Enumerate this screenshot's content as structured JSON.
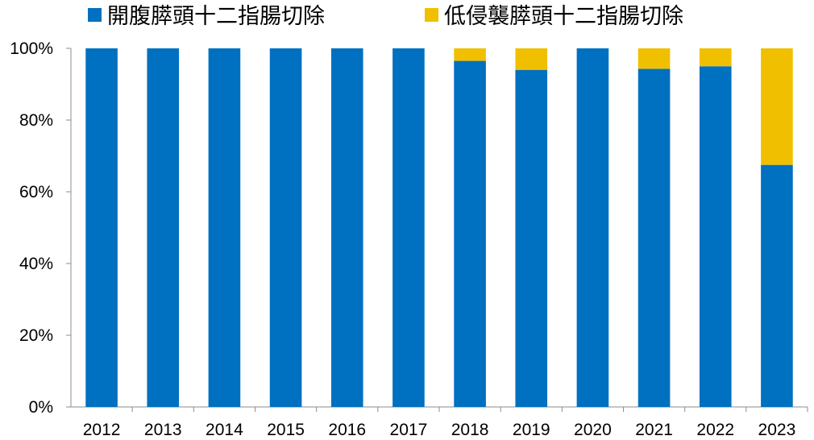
{
  "chart_data": {
    "type": "bar",
    "stacked": true,
    "title": "",
    "xlabel": "",
    "ylabel": "",
    "categories": [
      "2012",
      "2013",
      "2014",
      "2015",
      "2016",
      "2017",
      "2018",
      "2019",
      "2020",
      "2021",
      "2022",
      "2023"
    ],
    "series": [
      {
        "name": "開腹膵頭十二指腸切除",
        "color": "#0070C0",
        "values": [
          100,
          100,
          100,
          100,
          100,
          100,
          96.5,
          94,
          100,
          94.3,
          95,
          67.5
        ]
      },
      {
        "name": "低侵襲膵頭十二指腸切除",
        "color": "#F0C000",
        "values": [
          0,
          0,
          0,
          0,
          0,
          0,
          3.5,
          6,
          0,
          5.7,
          5,
          32.5
        ]
      }
    ],
    "ylim": [
      0,
      100
    ],
    "yticks": [
      "0%",
      "20%",
      "40%",
      "60%",
      "80%",
      "100%"
    ],
    "ytick_values": [
      0,
      20,
      40,
      60,
      80,
      100
    ],
    "grid": false,
    "legend_position": "top"
  }
}
